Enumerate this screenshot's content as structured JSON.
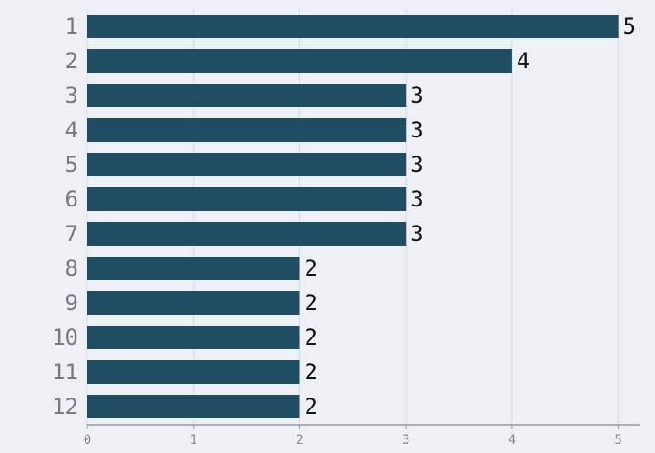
{
  "chart_data": {
    "type": "bar",
    "orientation": "horizontal",
    "categories": [
      "1",
      "2",
      "3",
      "4",
      "5",
      "6",
      "7",
      "8",
      "9",
      "10",
      "11",
      "12"
    ],
    "values": [
      5,
      4,
      3,
      3,
      3,
      3,
      3,
      2,
      2,
      2,
      2,
      2
    ],
    "color": "#1f4e63",
    "xlim": [
      0,
      5.2
    ],
    "xticks": [
      0,
      1,
      2,
      3,
      4,
      5
    ],
    "grid": true
  }
}
